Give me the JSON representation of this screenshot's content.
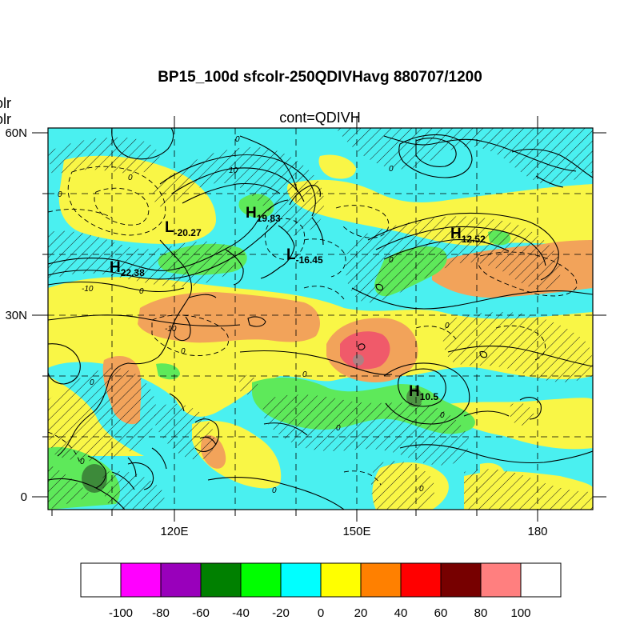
{
  "figure": {
    "title": "BP15_100d sfcolr-250QDIVHavg  880707/1200",
    "subtitle": "cont=QDIVH",
    "left_labels": [
      "olr",
      "olr"
    ]
  },
  "axes": {
    "lat_labels": [
      "60N",
      "30N",
      "0"
    ],
    "lon_labels": [
      "120E",
      "150E",
      "180"
    ]
  },
  "colorbar": {
    "colors": [
      "#ffffff",
      "#ff00ff",
      "#9900bb",
      "#008000",
      "#00ff00",
      "#00ffff",
      "#ffff00",
      "#ff8000",
      "#ff0000",
      "#770000",
      "#ff7f7f",
      "#ffffff"
    ],
    "labels": [
      "-100",
      "-80",
      "-60",
      "-40",
      "-20",
      "0",
      "20",
      "40",
      "60",
      "80",
      "100"
    ]
  },
  "map_colors": {
    "cyan": "#4af0f0",
    "yellow": "#f9f646",
    "orange": "#f2a35a",
    "green": "#5ee95a",
    "red": "#f05a6a"
  },
  "pressure_centers": [
    {
      "letter": "L",
      "value": "-20.27"
    },
    {
      "letter": "H",
      "value": "19.83"
    },
    {
      "letter": "H",
      "value": "12.52"
    },
    {
      "letter": "L",
      "value": "-16.45"
    },
    {
      "letter": "H",
      "value": "22.38"
    },
    {
      "letter": "H",
      "value": "10.5"
    }
  ],
  "contour_labels": [
    "0",
    "0",
    "0",
    "10",
    "-10",
    "0",
    "0",
    "0",
    "-10",
    "0",
    "0",
    "0",
    "0",
    "0",
    "0",
    "0",
    "0",
    "0"
  ]
}
